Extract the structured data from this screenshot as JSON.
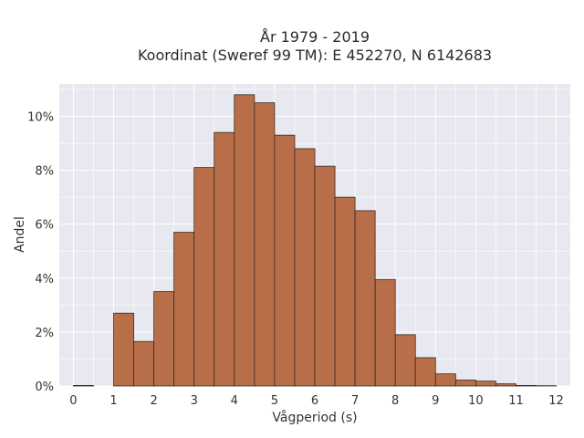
{
  "chart_data": {
    "type": "bar",
    "title_lines": [
      "År 1979 - 2019",
      "Koordinat (Sweref 99 TM): E 452270, N 6142683"
    ],
    "xlabel": "Vågperiod (s)",
    "ylabel": "Andel",
    "bin_width": 0.5,
    "bin_starts": [
      0,
      0.5,
      1,
      1.5,
      2,
      2.5,
      3,
      3.5,
      4,
      4.5,
      5,
      5.5,
      6,
      6.5,
      7,
      7.5,
      8,
      8.5,
      9,
      9.5,
      10,
      10.5,
      11,
      11.5
    ],
    "values": [
      0.02,
      0,
      2.7,
      1.65,
      3.5,
      5.7,
      8.1,
      9.4,
      10.8,
      10.5,
      9.3,
      8.8,
      8.15,
      7.0,
      6.5,
      3.95,
      1.9,
      1.05,
      0.45,
      0.22,
      0.18,
      0.08,
      0.02,
      0.01
    ],
    "xlim": [
      -0.35,
      12.35
    ],
    "ylim": [
      0,
      11.2
    ],
    "x_ticks": [
      0,
      1,
      2,
      3,
      4,
      5,
      6,
      7,
      8,
      9,
      10,
      11,
      12
    ],
    "x_tick_labels": [
      "0",
      "1",
      "2",
      "3",
      "4",
      "5",
      "6",
      "7",
      "8",
      "9",
      "10",
      "11",
      "12"
    ],
    "y_ticks": [
      0,
      2,
      4,
      6,
      8,
      10
    ],
    "y_tick_labels": [
      "0%",
      "2%",
      "4%",
      "6%",
      "8%",
      "10%"
    ],
    "bar_color": "#b86f49",
    "bar_edge_color": "#3a2a20",
    "plot_bg": "#e8e8f0",
    "grid_color": "#ffffff",
    "grid": true
  }
}
